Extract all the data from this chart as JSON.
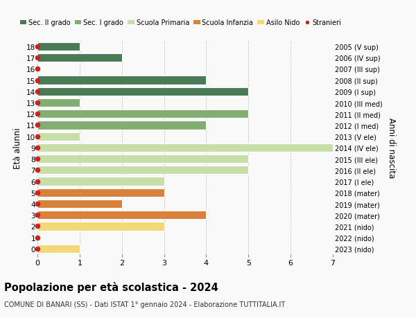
{
  "ages": [
    18,
    17,
    16,
    15,
    14,
    13,
    12,
    11,
    10,
    9,
    8,
    7,
    6,
    5,
    4,
    3,
    2,
    1,
    0
  ],
  "years": [
    "2005 (V sup)",
    "2006 (IV sup)",
    "2007 (III sup)",
    "2008 (II sup)",
    "2009 (I sup)",
    "2010 (III med)",
    "2011 (II med)",
    "2012 (I med)",
    "2013 (V ele)",
    "2014 (IV ele)",
    "2015 (III ele)",
    "2016 (II ele)",
    "2017 (I ele)",
    "2018 (mater)",
    "2019 (mater)",
    "2020 (mater)",
    "2021 (nido)",
    "2022 (nido)",
    "2023 (nido)"
  ],
  "values": [
    1,
    2,
    0,
    4,
    5,
    1,
    5,
    4,
    1,
    7,
    5,
    5,
    3,
    3,
    2,
    4,
    3,
    0,
    1
  ],
  "bar_colors": [
    "#4a7a56",
    "#4a7a56",
    "#4a7a56",
    "#4a7a56",
    "#4a7a56",
    "#82ae72",
    "#82ae72",
    "#82ae72",
    "#c8dea8",
    "#c8dea8",
    "#c8dea8",
    "#c8dea8",
    "#c8dea8",
    "#d9803a",
    "#d9803a",
    "#d9803a",
    "#f2d878",
    "#f2d878",
    "#f2d878"
  ],
  "legend_labels": [
    "Sec. II grado",
    "Sec. I grado",
    "Scuola Primaria",
    "Scuola Infanzia",
    "Asilo Nido",
    "Stranieri"
  ],
  "legend_colors": [
    "#4a7a56",
    "#82ae72",
    "#c8dea8",
    "#d9803a",
    "#f2d878",
    "#cc2222"
  ],
  "ylabel": "Età alunni",
  "ylabel_right": "Anni di nascita",
  "title": "Popolazione per età scolastica - 2024",
  "subtitle": "COMUNE DI BANARI (SS) - Dati ISTAT 1° gennaio 2024 - Elaborazione TUTTITALIA.IT",
  "xlim": [
    0,
    7
  ],
  "xticks": [
    0,
    1,
    2,
    3,
    4,
    5,
    6,
    7
  ],
  "background_color": "#f9f9f9",
  "grid_color": "#bbbbbb",
  "bar_height": 0.75,
  "stranieri_color": "#cc2222",
  "stranieri_size": 4.5
}
